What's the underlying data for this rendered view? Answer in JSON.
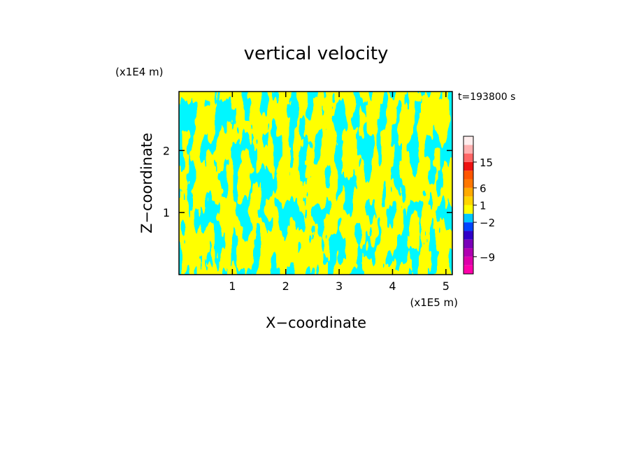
{
  "chart_data": {
    "type": "heatmap",
    "title": "vertical velocity",
    "xlabel": "X−coordinate",
    "ylabel": "Z−coordinate",
    "x_unit": "(x1E5 m)",
    "y_unit": "(x1E4 m)",
    "time_label": "t=193800 s",
    "xlim": [
      0.0,
      5.12
    ],
    "ylim": [
      0.0,
      2.95
    ],
    "x_ticks": [
      {
        "value": 1,
        "label": "1"
      },
      {
        "value": 2,
        "label": "2"
      },
      {
        "value": 3,
        "label": "3"
      },
      {
        "value": 4,
        "label": "4"
      },
      {
        "value": 5,
        "label": "5"
      }
    ],
    "y_ticks": [
      {
        "value": 1,
        "label": "1"
      },
      {
        "value": 2,
        "label": "2"
      }
    ],
    "grid": false,
    "field_colors": {
      "positive": "#ffff00",
      "negative": "#00eeff"
    },
    "colorbar": {
      "levels": [
        {
          "color": "#ff00aa"
        },
        {
          "color": "#dd00aa"
        },
        {
          "color": "#b000b0"
        },
        {
          "color": "#7a00b8"
        },
        {
          "color": "#3000c8"
        },
        {
          "color": "#0044ff"
        },
        {
          "color": "#00c8ff"
        },
        {
          "color": "#ffff00"
        },
        {
          "color": "#ffd400"
        },
        {
          "color": "#ffaa00"
        },
        {
          "color": "#ff7700"
        },
        {
          "color": "#ff5500"
        },
        {
          "color": "#ee1111"
        },
        {
          "color": "#ff6666"
        },
        {
          "color": "#ffb0b0"
        },
        {
          "color": "#ffeeee"
        }
      ],
      "labels": [
        {
          "text": "15",
          "at": 13
        },
        {
          "text": "6",
          "at": 10
        },
        {
          "text": "1",
          "at": 8
        },
        {
          "text": "−2",
          "at": 6
        },
        {
          "text": "−9",
          "at": 2
        }
      ]
    }
  }
}
